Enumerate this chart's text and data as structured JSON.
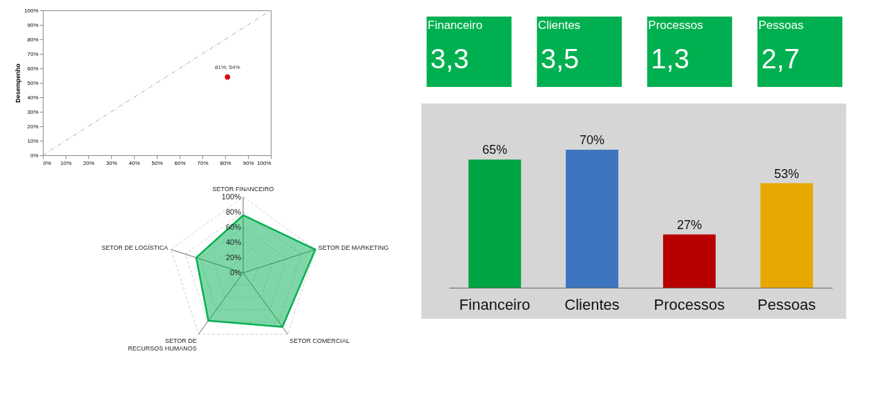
{
  "chart_data": [
    {
      "type": "scatter",
      "ylabel": "Desempenho",
      "xlim": [
        0,
        100
      ],
      "ylim": [
        0,
        100
      ],
      "xticks": [
        {
          "value": 0,
          "label": "0%"
        },
        {
          "value": 10,
          "label": "10%"
        },
        {
          "value": 20,
          "label": "20%"
        },
        {
          "value": 30,
          "label": "30%"
        },
        {
          "value": 40,
          "label": "40%"
        },
        {
          "value": 50,
          "label": "50%"
        },
        {
          "value": 60,
          "label": "60%"
        },
        {
          "value": 70,
          "label": "70%"
        },
        {
          "value": 80,
          "label": "80%"
        },
        {
          "value": 90,
          "label": "90%"
        },
        {
          "value": 100,
          "label": "100%"
        }
      ],
      "yticks": [
        {
          "value": 0,
          "label": "0%"
        },
        {
          "value": 10,
          "label": "10%"
        },
        {
          "value": 20,
          "label": "20%"
        },
        {
          "value": 30,
          "label": "30%"
        },
        {
          "value": 40,
          "label": "40%"
        },
        {
          "value": 50,
          "label": "50%"
        },
        {
          "value": 60,
          "label": "60%"
        },
        {
          "value": 70,
          "label": "70%"
        },
        {
          "value": 80,
          "label": "80%"
        },
        {
          "value": 90,
          "label": "90%"
        },
        {
          "value": 100,
          "label": "100%"
        }
      ],
      "series": [
        {
          "type": "line",
          "color": "#a6a6a6",
          "line_style": "dashed",
          "x": [
            0,
            100
          ],
          "values": [
            0,
            100
          ]
        },
        {
          "type": "scatter",
          "color": "#e00000",
          "marker": "circle",
          "x": [
            81
          ],
          "values": [
            54
          ],
          "value_labels": [
            "81%; 54%"
          ]
        }
      ]
    },
    {
      "type": "radar",
      "categories": [
        "SETOR FINANCEIRO",
        "SETOR DE MARKETING",
        "SETOR COMERCIAL",
        "SETOR DE RECURSOS HUMANOS",
        "SETOR DE LOGÍSTICA"
      ],
      "ylim": [
        0,
        100
      ],
      "yticks": [
        {
          "value": 0,
          "label": "0%"
        },
        {
          "value": 20,
          "label": "20%"
        },
        {
          "value": 40,
          "label": "40%"
        },
        {
          "value": 60,
          "label": "60%"
        },
        {
          "value": 80,
          "label": "80%"
        },
        {
          "value": 100,
          "label": "100%"
        }
      ],
      "grid": true,
      "series": [
        {
          "color": "#00b050",
          "values": [
            76,
            100,
            88,
            78,
            65
          ]
        }
      ]
    },
    {
      "type": "other",
      "categories": [
        "Financeiro",
        "Clientes",
        "Processos",
        "Pessoas"
      ],
      "value_labels": [
        "3,3",
        "3,5",
        "1,3",
        "2,7"
      ],
      "color": "#00b050"
    },
    {
      "type": "bar",
      "categories": [
        "Financeiro",
        "Clientes",
        "Processos",
        "Pessoas"
      ],
      "values": [
        65,
        70,
        27,
        53
      ],
      "value_labels": [
        "65%",
        "70%",
        "27%",
        "53%"
      ],
      "colors": [
        "#00a544",
        "#3d75c0",
        "#b80000",
        "#e6a800"
      ],
      "tick_labels": "x"
    }
  ]
}
